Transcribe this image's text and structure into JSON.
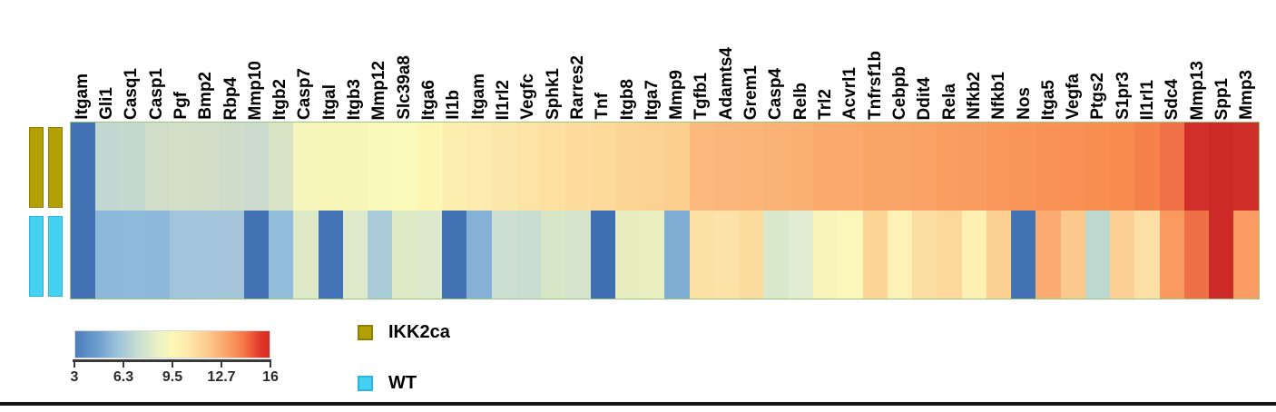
{
  "chart_data": {
    "type": "heatmap",
    "columns": [
      "Itgam",
      "Gli1",
      "Casq1",
      "Casp1",
      "Pgf",
      "Bmp2",
      "Rbp4",
      "Mmp10",
      "Itgb2",
      "Casp7",
      "Itgal",
      "Itgb3",
      "Mmp12",
      "Slc39a8",
      "Itga6",
      "Il1b",
      "Itgam",
      "Il1rl2",
      "Vegfc",
      "Sphk1",
      "Rarres2",
      "Tnf",
      "Itgb8",
      "Itga7",
      "Mmp9",
      "Tgfb1",
      "Adamts4",
      "Grem1",
      "Casp4",
      "Relb",
      "Trl2",
      "Acvrl1",
      "Tnfrsf1b",
      "Cebpb",
      "Ddit4",
      "Rela",
      "Nfkb2",
      "Nfkb1",
      "Nos",
      "Itga5",
      "Vegfa",
      "Ptgs2",
      "S1pr3",
      "Il1rl1",
      "Sdc4",
      "Mmp13",
      "Spp1",
      "Mmp3"
    ],
    "rows": [
      {
        "name": "IKK2ca",
        "group_color": "#b3a005",
        "group_border": "#8f7d04",
        "colors": [
          "#4272b4",
          "#c2d7d2",
          "#c4d9d0",
          "#d0ddc8",
          "#d3dfc6",
          "#d2dec7",
          "#cfdcca",
          "#cbdacd",
          "#d8e3c6",
          "#f5f4ba",
          "#f8f6b6",
          "#f7f5b7",
          "#faf8b9",
          "#fcfabb",
          "#fdf6b3",
          "#fdefb0",
          "#fdeaae",
          "#fde8ab",
          "#fde3a5",
          "#fddfa1",
          "#fddc9e",
          "#fdd99a",
          "#fdd595",
          "#fdd192",
          "#fcce8e",
          "#fbb97d",
          "#fbb77b",
          "#fbb578",
          "#fbb276",
          "#fbb074",
          "#faaa6e",
          "#faa86b",
          "#faa669",
          "#faa468",
          "#faa266",
          "#f99e61",
          "#f99c5f",
          "#f9975a",
          "#f99558",
          "#f89255",
          "#f89153",
          "#f88e50",
          "#f88c4e",
          "#f5814b",
          "#f07147",
          "#d1302a",
          "#cb2a27",
          "#cf2f29"
        ],
        "values": [
          4.0,
          7.5,
          7.5,
          8.2,
          8.3,
          8.2,
          8.1,
          7.9,
          8.5,
          9.5,
          9.6,
          9.6,
          9.7,
          9.8,
          10.0,
          10.1,
          10.2,
          10.3,
          10.5,
          10.6,
          10.7,
          10.8,
          11.0,
          11.1,
          11.2,
          12.2,
          12.2,
          12.3,
          12.3,
          12.4,
          12.6,
          12.7,
          12.7,
          12.8,
          12.8,
          13.0,
          13.1,
          13.2,
          13.3,
          13.4,
          13.4,
          13.5,
          13.5,
          13.8,
          14.3,
          15.6,
          15.8,
          15.7
        ]
      },
      {
        "name": "WT",
        "group_color": "#45d1f2",
        "group_border": "#29b6e0",
        "colors": [
          "#4272b4",
          "#8cb8d9",
          "#8db9da",
          "#8db8d9",
          "#a3c5db",
          "#a4c6dc",
          "#a5c5da",
          "#4272b4",
          "#93bedb",
          "#dce8c6",
          "#4373b5",
          "#dfe9cb",
          "#a9cbd8",
          "#dde9c5",
          "#dbe8cc",
          "#4272b4",
          "#85b1d7",
          "#ccdfd2",
          "#c9ddd2",
          "#d8e6c8",
          "#d5e3cc",
          "#3f6fb3",
          "#e8eec0",
          "#e9efc1",
          "#7fadd4",
          "#fce1a4",
          "#fce2a6",
          "#fcdc9e",
          "#d9e7ca",
          "#e2ecd2",
          "#f8f3b8",
          "#fbf7bb",
          "#fcd694",
          "#fdf2b6",
          "#fcdda2",
          "#fcd99b",
          "#fdf0b2",
          "#fcd091",
          "#4272b4",
          "#fbab72",
          "#fcc98c",
          "#bdd8cf",
          "#fcd094",
          "#fcdfa4",
          "#fa9a60",
          "#ef7046",
          "#cc2a27",
          "#fa9c63"
        ],
        "values": [
          4.0,
          6.0,
          6.0,
          6.0,
          6.5,
          6.5,
          6.5,
          4.0,
          6.3,
          8.4,
          4.0,
          8.5,
          6.7,
          8.4,
          8.4,
          4.0,
          5.9,
          7.7,
          7.6,
          8.3,
          8.2,
          3.9,
          8.9,
          8.9,
          5.8,
          10.5,
          10.4,
          10.7,
          8.3,
          8.6,
          9.6,
          9.7,
          11.0,
          9.9,
          10.6,
          10.8,
          10.0,
          11.2,
          4.0,
          12.4,
          11.4,
          7.2,
          11.2,
          10.5,
          13.1,
          14.2,
          15.8,
          13.0
        ]
      }
    ],
    "value_scale": {
      "min": 3,
      "max": 16,
      "tick_labels": [
        "3",
        "6.3",
        "9.5",
        "12.7",
        "16"
      ]
    },
    "colorbar_gradient": [
      "#4b7dbf 0%",
      "#6f9fce 12%",
      "#9cc3da 22%",
      "#c6ded2 32%",
      "#e8f0c6 42%",
      "#fbf8b6 50%",
      "#fde4a6 60%",
      "#fcc78b 69%",
      "#fba368 78%",
      "#f47747 87%",
      "#e13a2a 95%",
      "#d92b22 100%"
    ],
    "legend": [
      {
        "label": "IKK2ca",
        "color": "#b3a005",
        "border": "#8f7d04"
      },
      {
        "label": "WT",
        "color": "#45d1f2",
        "border": "#29b6e0"
      }
    ],
    "grid_border_color": "#9cc783"
  }
}
